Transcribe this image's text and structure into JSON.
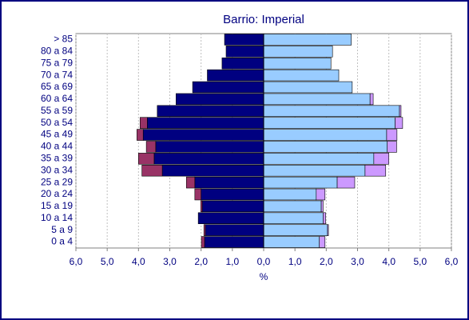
{
  "chart_data": {
    "type": "bar",
    "title": "Barrio: Imperial",
    "xlabel": "%",
    "categories": [
      "> 85",
      "80 a 84",
      "75 a 79",
      "70 a 74",
      "65 a 69",
      "60 a 64",
      "55 a 59",
      "50 a 54",
      "45 a 49",
      "40 a 44",
      "35 a 39",
      "30 a 34",
      "25 a 29",
      "20 a 24",
      "15 a 19",
      "10 a 14",
      "5 a 9",
      "0 a 4"
    ],
    "series": [
      {
        "color": "#000080",
        "values": [
          -1.25,
          -1.2,
          -1.33,
          -1.8,
          -2.27,
          -2.8,
          -3.4,
          -3.72,
          -3.85,
          -3.45,
          -3.5,
          -3.24,
          -2.2,
          -2.0,
          -1.96,
          -2.09,
          -1.86,
          -1.89
        ]
      },
      {
        "color": "#993366",
        "values": [
          0,
          0,
          0,
          0,
          0,
          0,
          0,
          -0.23,
          -0.2,
          -0.3,
          -0.5,
          -0.65,
          -0.27,
          -0.2,
          -0.05,
          0,
          -0.05,
          -0.1
        ]
      },
      {
        "color": "#99ccff",
        "values": [
          2.8,
          2.2,
          2.15,
          2.4,
          2.83,
          3.4,
          4.34,
          4.2,
          3.93,
          3.95,
          3.52,
          3.24,
          2.35,
          1.68,
          1.84,
          1.9,
          2.04,
          1.78
        ]
      },
      {
        "color": "#cc99ff",
        "values": [
          0,
          0,
          0,
          0,
          0,
          0.1,
          0.05,
          0.24,
          0.33,
          0.3,
          0.48,
          0.66,
          0.56,
          0.28,
          0.06,
          0.08,
          0.03,
          0.18
        ]
      }
    ],
    "xlim": [
      -6,
      6
    ],
    "xticks": [
      {
        "value": -6,
        "label": "6,0"
      },
      {
        "value": -5,
        "label": "5,0"
      },
      {
        "value": -4,
        "label": "4,0"
      },
      {
        "value": -3,
        "label": "3,0"
      },
      {
        "value": -2,
        "label": "2,0"
      },
      {
        "value": -1,
        "label": "1,0"
      },
      {
        "value": 0,
        "label": "0,0"
      },
      {
        "value": 1,
        "label": "1,0"
      },
      {
        "value": 2,
        "label": "2,0"
      },
      {
        "value": 3,
        "label": "3,0"
      },
      {
        "value": 4,
        "label": "4,0"
      },
      {
        "value": 5,
        "label": "5,0"
      },
      {
        "value": 6,
        "label": "6,0"
      }
    ],
    "grid": true
  }
}
